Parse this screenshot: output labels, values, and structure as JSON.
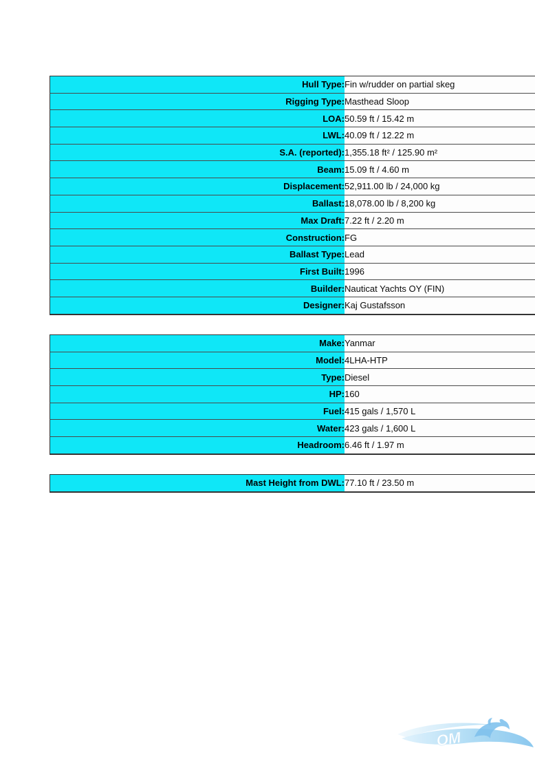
{
  "colors": {
    "label_bg": "#0fe7f7",
    "row_border": "#4a4a4a",
    "outer_border": "#333333",
    "label_text": "#000000",
    "value_text": "#0a0a0a",
    "value_bg": "#fdfdfd",
    "page_bg": "#ffffff"
  },
  "tables": [
    {
      "name": "hull-and-dimensions",
      "rows": [
        {
          "label": "Hull Type:",
          "value": "Fin w/rudder on partial skeg"
        },
        {
          "label": "Rigging Type:",
          "value": "Masthead Sloop"
        },
        {
          "label": "LOA:",
          "value": "50.59 ft / 15.42 m"
        },
        {
          "label": "LWL:",
          "value": "40.09 ft / 12.22 m"
        },
        {
          "label": "S.A. (reported):",
          "value": "1,355.18 ft² / 125.90 m²"
        },
        {
          "label": "Beam:",
          "value": "15.09 ft / 4.60 m"
        },
        {
          "label": "Displacement:",
          "value": "52,911.00 lb / 24,000 kg"
        },
        {
          "label": "Ballast:",
          "value": "18,078.00 lb / 8,200 kg"
        },
        {
          "label": "Max Draft:",
          "value": "7.22 ft / 2.20 m"
        },
        {
          "label": "Construction:",
          "value": "FG"
        },
        {
          "label": "Ballast Type:",
          "value": "Lead"
        },
        {
          "label": "First Built:",
          "value": "1996"
        },
        {
          "label": "Builder:",
          "value": "Nauticat Yachts OY (FIN)"
        },
        {
          "label": "Designer:",
          "value": "Kaj Gustafsson"
        }
      ]
    },
    {
      "name": "engine",
      "rows": [
        {
          "label": "Make:",
          "value": "Yanmar"
        },
        {
          "label": "Model:",
          "value": "4LHA-HTP"
        },
        {
          "label": "Type:",
          "value": "Diesel"
        },
        {
          "label": "HP:",
          "value": "160"
        },
        {
          "label": "Fuel:",
          "value": "415 gals / 1,570 L"
        },
        {
          "label": "Water:",
          "value": "423 gals / 1,600 L"
        },
        {
          "label": "Headroom:",
          "value": "6.46 ft / 1.97 m"
        }
      ]
    },
    {
      "name": "rig",
      "rows": [
        {
          "label": "Mast Height from DWL:",
          "value": "77.10 ft / 23.50 m"
        }
      ]
    }
  ],
  "logo": {
    "visible_text": "OM",
    "wave_color_light": "#d6eefc",
    "wave_color_dark": "#5fb3e8",
    "dolphin_color": "#6ab7ea"
  }
}
